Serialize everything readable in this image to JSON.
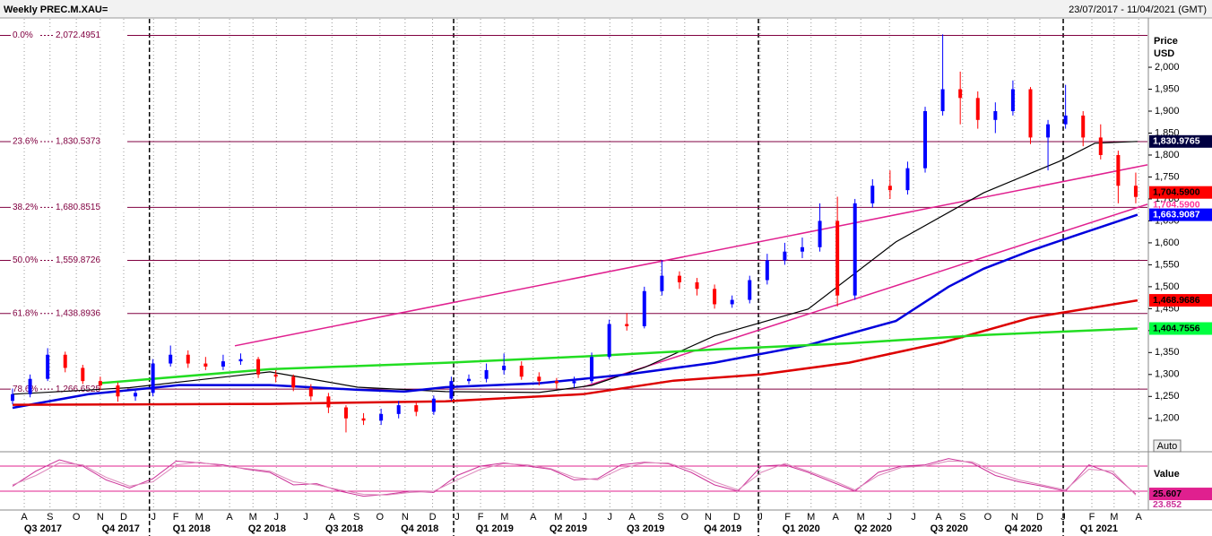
{
  "chart_data": {
    "type": "candlestick",
    "title": "Weekly PREC.M.XAU=",
    "date_range": "23/07/2017 - 11/04/2021 (GMT)",
    "y_label": "Price",
    "y_unit": "USD",
    "auto_button": "Auto",
    "xlim": [
      0,
      194
    ],
    "ylim": [
      1126,
      2092
    ],
    "yticks": [
      {
        "value": 1200,
        "label": "1,200"
      },
      {
        "value": 1250,
        "label": "1,250"
      },
      {
        "value": 1300,
        "label": "1,300"
      },
      {
        "value": 1350,
        "label": "1,350"
      },
      {
        "value": 1400,
        "label": "1,400"
      },
      {
        "value": 1450,
        "label": "1,450"
      },
      {
        "value": 1500,
        "label": "1,500"
      },
      {
        "value": 1550,
        "label": "1,550"
      },
      {
        "value": 1600,
        "label": "1,600"
      },
      {
        "value": 1650,
        "label": "1,650"
      },
      {
        "value": 1700,
        "label": "1,700"
      },
      {
        "value": 1750,
        "label": "1,750"
      },
      {
        "value": 1800,
        "label": "1,800"
      },
      {
        "value": 1850,
        "label": "1,850"
      },
      {
        "value": 1900,
        "label": "1,900"
      },
      {
        "value": 1950,
        "label": "1,950"
      },
      {
        "value": 2000,
        "label": "2,000"
      }
    ],
    "months": [
      {
        "value": 2.0,
        "label": "A"
      },
      {
        "value": 6.4,
        "label": "S"
      },
      {
        "value": 10.9,
        "label": "O"
      },
      {
        "value": 15.0,
        "label": "N"
      },
      {
        "value": 19.0,
        "label": "D"
      },
      {
        "value": 24.1,
        "label": "J"
      },
      {
        "value": 27.9,
        "label": "F"
      },
      {
        "value": 31.9,
        "label": "M"
      },
      {
        "value": 37.1,
        "label": "A"
      },
      {
        "value": 41.1,
        "label": "M"
      },
      {
        "value": 45.1,
        "label": "J"
      },
      {
        "value": 50.1,
        "label": "J"
      },
      {
        "value": 54.6,
        "label": "A"
      },
      {
        "value": 58.8,
        "label": "S"
      },
      {
        "value": 62.8,
        "label": "O"
      },
      {
        "value": 67.1,
        "label": "N"
      },
      {
        "value": 71.8,
        "label": "D"
      },
      {
        "value": 76.0,
        "label": "J"
      },
      {
        "value": 80.0,
        "label": "F"
      },
      {
        "value": 84.1,
        "label": "M"
      },
      {
        "value": 89.0,
        "label": "A"
      },
      {
        "value": 93.3,
        "label": "M"
      },
      {
        "value": 97.8,
        "label": "J"
      },
      {
        "value": 102.1,
        "label": "J"
      },
      {
        "value": 105.9,
        "label": "A"
      },
      {
        "value": 110.8,
        "label": "S"
      },
      {
        "value": 114.9,
        "label": "O"
      },
      {
        "value": 118.9,
        "label": "N"
      },
      {
        "value": 123.8,
        "label": "D"
      },
      {
        "value": 127.8,
        "label": "J"
      },
      {
        "value": 132.5,
        "label": "F"
      },
      {
        "value": 136.5,
        "label": "M"
      },
      {
        "value": 140.7,
        "label": "A"
      },
      {
        "value": 145.0,
        "label": "M"
      },
      {
        "value": 149.9,
        "label": "J"
      },
      {
        "value": 154.0,
        "label": "J"
      },
      {
        "value": 158.3,
        "label": "A"
      },
      {
        "value": 162.4,
        "label": "S"
      },
      {
        "value": 166.7,
        "label": "O"
      },
      {
        "value": 171.3,
        "label": "N"
      },
      {
        "value": 175.6,
        "label": "D"
      },
      {
        "value": 179.6,
        "label": "J"
      },
      {
        "value": 184.5,
        "label": "F"
      },
      {
        "value": 188.3,
        "label": "M"
      },
      {
        "value": 192.5,
        "label": "A"
      }
    ],
    "quarters": [
      {
        "value": 5.2,
        "label": "Q3 2017"
      },
      {
        "value": 18.5,
        "label": "Q4 2017"
      },
      {
        "value": 30.6,
        "label": "Q1 2018"
      },
      {
        "value": 43.5,
        "label": "Q2 2018"
      },
      {
        "value": 56.7,
        "label": "Q3 2018"
      },
      {
        "value": 69.6,
        "label": "Q4 2018"
      },
      {
        "value": 82.4,
        "label": "Q1 2019"
      },
      {
        "value": 95.0,
        "label": "Q2 2019"
      },
      {
        "value": 108.2,
        "label": "Q3 2019"
      },
      {
        "value": 121.4,
        "label": "Q4 2019"
      },
      {
        "value": 134.8,
        "label": "Q1 2020"
      },
      {
        "value": 147.1,
        "label": "Q2 2020"
      },
      {
        "value": 160.1,
        "label": "Q3 2020"
      },
      {
        "value": 172.8,
        "label": "Q4 2020"
      },
      {
        "value": 185.7,
        "label": "Q1 2021"
      }
    ],
    "year_lines": [
      23.4,
      75.4,
      127.5,
      179.6
    ],
    "candles": {
      "up_color": "#0000ff",
      "down_color": "#ff0000",
      "box_color": "#ff0000",
      "close_label": "1,704.5900",
      "x": [
        0,
        3,
        6,
        9,
        12,
        15,
        18,
        21,
        24,
        27,
        30,
        33,
        36,
        39,
        42,
        45,
        48,
        51,
        54,
        57,
        60,
        63,
        66,
        69,
        72,
        75,
        78,
        81,
        84,
        87,
        90,
        93,
        96,
        99,
        102,
        105,
        108,
        111,
        114,
        117,
        120,
        123,
        126,
        129,
        132,
        135,
        138,
        141,
        144,
        147,
        150,
        153,
        156,
        159,
        162,
        165,
        168,
        171,
        174,
        177,
        180,
        183,
        186,
        189,
        192
      ],
      "open": [
        1240,
        1255,
        1290,
        1345,
        1315,
        1285,
        1275,
        1250,
        1258,
        1325,
        1345,
        1325,
        1318,
        1330,
        1335,
        1300,
        1295,
        1270,
        1250,
        1225,
        1200,
        1195,
        1210,
        1230,
        1215,
        1245,
        1285,
        1290,
        1310,
        1320,
        1295,
        1285,
        1280,
        1285,
        1340,
        1415,
        1410,
        1490,
        1525,
        1510,
        1495,
        1460,
        1470,
        1515,
        1560,
        1580,
        1590,
        1650,
        1480,
        1690,
        1730,
        1720,
        1770,
        1900,
        1950,
        1930,
        1880,
        1900,
        1950,
        1840,
        1870,
        1890,
        1840,
        1800,
        1730
      ],
      "high": [
        1268,
        1300,
        1360,
        1352,
        1322,
        1295,
        1282,
        1268,
        1335,
        1366,
        1355,
        1340,
        1345,
        1348,
        1340,
        1310,
        1300,
        1278,
        1258,
        1230,
        1212,
        1222,
        1240,
        1238,
        1252,
        1295,
        1300,
        1325,
        1348,
        1330,
        1305,
        1292,
        1295,
        1350,
        1425,
        1440,
        1500,
        1560,
        1535,
        1520,
        1505,
        1480,
        1525,
        1575,
        1600,
        1612,
        1690,
        1705,
        1700,
        1745,
        1765,
        1785,
        1910,
        2075,
        1990,
        1945,
        1920,
        1970,
        1955,
        1880,
        1960,
        1900,
        1870,
        1810,
        1760
      ],
      "low": [
        1232,
        1248,
        1285,
        1305,
        1278,
        1265,
        1238,
        1240,
        1250,
        1318,
        1315,
        1310,
        1310,
        1322,
        1292,
        1282,
        1262,
        1240,
        1212,
        1168,
        1185,
        1185,
        1200,
        1205,
        1208,
        1240,
        1278,
        1282,
        1300,
        1288,
        1275,
        1268,
        1270,
        1280,
        1335,
        1400,
        1405,
        1480,
        1495,
        1480,
        1450,
        1452,
        1462,
        1505,
        1550,
        1565,
        1580,
        1455,
        1470,
        1680,
        1700,
        1710,
        1760,
        1890,
        1870,
        1860,
        1850,
        1890,
        1825,
        1765,
        1860,
        1820,
        1790,
        1690,
        1690
      ],
      "close": [
        1255,
        1290,
        1345,
        1315,
        1285,
        1275,
        1250,
        1258,
        1325,
        1345,
        1325,
        1318,
        1330,
        1335,
        1300,
        1295,
        1270,
        1250,
        1225,
        1200,
        1195,
        1210,
        1230,
        1215,
        1245,
        1285,
        1290,
        1310,
        1320,
        1295,
        1285,
        1280,
        1285,
        1340,
        1415,
        1410,
        1490,
        1525,
        1510,
        1495,
        1460,
        1470,
        1515,
        1560,
        1580,
        1590,
        1650,
        1480,
        1690,
        1730,
        1720,
        1770,
        1900,
        1950,
        1930,
        1880,
        1900,
        1950,
        1840,
        1870,
        1890,
        1840,
        1800,
        1730,
        1704.59
      ]
    },
    "fib_color": "#800040",
    "fib_levels": [
      {
        "percent": "0.0%",
        "value": 2072.4951,
        "label": "2,072.4951"
      },
      {
        "percent": "23.6%",
        "value": 1830.5373,
        "label": "1,830.5373"
      },
      {
        "percent": "38.2%",
        "value": 1680.8515,
        "label": "1,680.8515"
      },
      {
        "percent": "50.0%",
        "value": 1559.8726,
        "label": "1,559.8726"
      },
      {
        "percent": "61.8%",
        "value": 1438.8936,
        "label": "1,438.8936"
      },
      {
        "percent": "78.6%",
        "value": 1266.6525,
        "label": "1,266.6525"
      }
    ],
    "trend_color": "#e0208f",
    "trendlines": [
      {
        "x": [
          38,
          194
        ],
        "values": [
          1365.3,
          1777.6
        ]
      },
      {
        "x": [
          97.5,
          194
        ],
        "values": [
          1271.4,
          1687.8
        ]
      }
    ],
    "series": [
      {
        "color": "#000000",
        "box_color": "#000040",
        "box_text": "#ffffff",
        "last_label": "1,830.9765",
        "x": [
          0,
          20,
          44,
          59,
          74,
          90,
          99,
          108,
          120,
          136,
          151,
          166,
          179,
          185,
          192.3
        ],
        "values": [
          1255,
          1270,
          1306,
          1271,
          1261,
          1259,
          1275,
          1316,
          1388,
          1449,
          1602,
          1714,
          1786,
          1827,
          1830.9765
        ]
      },
      {
        "color": "#0000dd",
        "box_color": "#0000ff",
        "box_text": "#ffffff",
        "last_label": "1,663.9087",
        "x": [
          0,
          13,
          28.5,
          44,
          59,
          67,
          74,
          90,
          105,
          120,
          136,
          151,
          160,
          166,
          174,
          182,
          192.3
        ],
        "values": [
          1224,
          1255,
          1276,
          1276,
          1265,
          1261,
          1271,
          1280,
          1300,
          1327,
          1367,
          1422,
          1500,
          1541,
          1582,
          1618,
          1663.9087
        ]
      },
      {
        "color": "#dd0000",
        "box_color": "#ff0000",
        "box_text": "#000000",
        "last_label": "1,468.9686",
        "x": [
          0,
          44,
          74,
          97.5,
          113,
          128,
          143,
          159,
          174,
          192.3
        ],
        "values": [
          1231,
          1233,
          1239,
          1255,
          1286,
          1300,
          1327,
          1373,
          1429,
          1468.9686
        ]
      },
      {
        "color": "#22dd22",
        "box_color": "#00ff40",
        "box_text": "#000000",
        "last_label": "1,404.7556",
        "x": [
          14.7,
          44,
          74.5,
          97.5,
          120,
          143,
          166,
          192.3
        ],
        "values": [
          1280,
          1312,
          1327,
          1341,
          1357,
          1371,
          1390,
          1404.7556
        ]
      }
    ],
    "oscillator": {
      "label": "Value",
      "ylim": [
        1.4,
        91.4
      ],
      "levels": [
        70,
        30
      ],
      "level_color": "#e0208f",
      "series": [
        {
          "color": "#cc3399",
          "box_color": "#e0208f",
          "x": [
            0,
            4,
            8,
            12,
            16,
            20,
            24,
            28,
            32,
            36,
            40,
            44,
            48,
            52,
            56,
            60,
            64,
            68,
            72,
            76,
            80,
            84,
            88,
            92,
            96,
            100,
            104,
            108,
            112,
            116,
            120,
            124,
            128,
            132,
            136,
            140,
            144,
            148,
            152,
            156,
            160,
            164,
            168,
            172,
            176,
            180,
            184,
            188,
            192
          ],
          "values": [
            38,
            62,
            80,
            70,
            48,
            35,
            50,
            78,
            75,
            72,
            65,
            60,
            40,
            42,
            30,
            22,
            25,
            30,
            28,
            55,
            70,
            75,
            70,
            65,
            48,
            50,
            72,
            76,
            74,
            60,
            40,
            30,
            70,
            72,
            60,
            45,
            30,
            60,
            70,
            72,
            82,
            75,
            55,
            45,
            38,
            30,
            72,
            58,
            25.607
          ]
        },
        {
          "color": "#dd88bb",
          "x": [
            0,
            4,
            8,
            12,
            16,
            20,
            24,
            28,
            32,
            36,
            40,
            44,
            48,
            52,
            56,
            60,
            64,
            68,
            72,
            76,
            80,
            84,
            88,
            92,
            96,
            100,
            104,
            108,
            112,
            116,
            120,
            124,
            128,
            132,
            136,
            140,
            144,
            148,
            152,
            156,
            160,
            164,
            168,
            172,
            176,
            180,
            184,
            188,
            192
          ],
          "values": [
            40,
            55,
            75,
            72,
            52,
            38,
            45,
            72,
            76,
            70,
            66,
            62,
            45,
            40,
            32,
            25,
            24,
            28,
            30,
            48,
            65,
            74,
            72,
            66,
            52,
            48,
            66,
            75,
            75,
            64,
            45,
            32,
            60,
            74,
            62,
            48,
            32,
            55,
            68,
            70,
            78,
            77,
            60,
            48,
            40,
            32,
            65,
            62,
            23.852
          ]
        }
      ]
    }
  }
}
